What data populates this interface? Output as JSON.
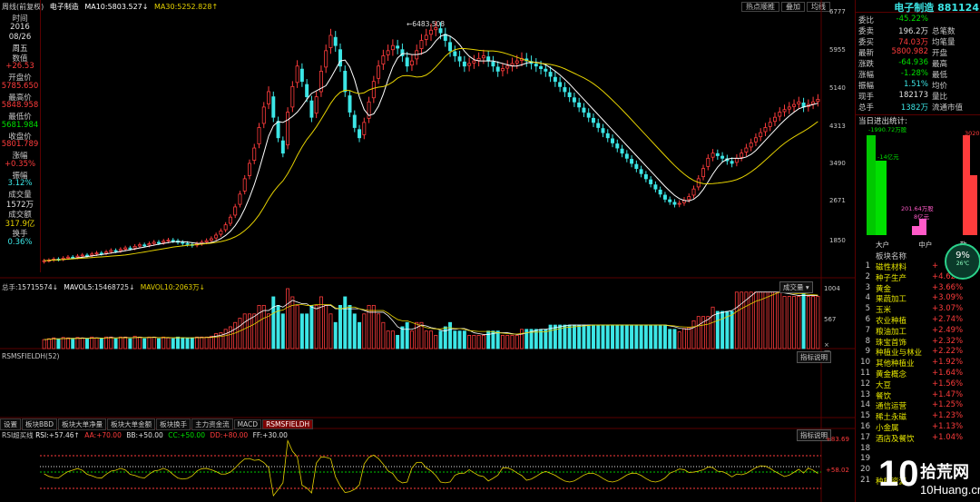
{
  "header": {
    "period": "周线(前复权)",
    "name": "电子制造",
    "ma10_label": "MA10:",
    "ma10_value": "5803.527↓",
    "ma30_label": "MA30:",
    "ma30_value": "5252.828↑",
    "top_buttons": [
      "热点顺推",
      "叠加",
      "均线"
    ]
  },
  "left_info": [
    {
      "label": "时间",
      "value": "2016",
      "color": "white"
    },
    {
      "label": "",
      "value": "08/26",
      "color": "white"
    },
    {
      "label": "",
      "value": "周五",
      "color": "white"
    },
    {
      "label": "数值",
      "value": "+26.53",
      "color": "red"
    },
    {
      "label": "开盘价",
      "value": "5785.650",
      "color": "red"
    },
    {
      "label": "最高价",
      "value": "5848.958",
      "color": "red"
    },
    {
      "label": "最低价",
      "value": "5681.984",
      "color": "green"
    },
    {
      "label": "收盘价",
      "value": "5801.789",
      "color": "red"
    },
    {
      "label": "涨幅",
      "value": "+0.35%",
      "color": "red"
    },
    {
      "label": "振幅",
      "value": "3.12%",
      "color": "cyan"
    },
    {
      "label": "成交量",
      "value": "1572万",
      "color": "white"
    },
    {
      "label": "成交额",
      "value": "317.9亿",
      "color": "yellow"
    },
    {
      "label": "换手",
      "value": "0.36%",
      "color": "cyan"
    }
  ],
  "price_axis": [
    "6777",
    "5955",
    "5140",
    "4313",
    "3490",
    "2671",
    "1850"
  ],
  "peak_label": "6483.508",
  "volume": {
    "label1": "总手",
    "v1": "15715574↓",
    "label2": "MAVOL5:",
    "v2": "15468725↓",
    "label3": "MAVOL10:",
    "v3": "2063万↓",
    "dropdown": "成交量",
    "axis": [
      "1004",
      "567",
      "×万"
    ]
  },
  "rsm": {
    "label": "RSMSFIELDH(52)",
    "button": "指标说明"
  },
  "tabs": [
    "设置",
    "板块BBD",
    "板块大单净量",
    "板块大单金额",
    "板块换手",
    "主力资金流",
    "MACD",
    "RSMSFIELDH"
  ],
  "active_tab": "RSMSFIELDH",
  "rsi": {
    "title": "RSI超买线",
    "rsi_label": "RSI:",
    "rsi_value": "+57.46↑",
    "aa": "AA:+70.00",
    "bb": "BB:+50.00",
    "cc": "CC:+50.00",
    "dd": "DD:+80.00",
    "ff": "FF:+30.00",
    "button": "指标说明",
    "axis_top": "+83.69",
    "axis_mid": "+58.02"
  },
  "right_panel": {
    "title": "电子制造 881124",
    "rows": [
      {
        "k": "委比",
        "v": "-45.22%",
        "vc": "green",
        "k2": ""
      },
      {
        "k": "委卖",
        "v": "196.2万",
        "vc": "white",
        "k2": "总笔数"
      },
      {
        "k": "委买",
        "v": "74.03万",
        "vc": "red",
        "k2": "均笔量"
      },
      {
        "k": "最新",
        "v": "5800.982",
        "vc": "red",
        "k2": "开盘"
      },
      {
        "k": "涨跌",
        "v": "-64.936",
        "vc": "green",
        "k2": "最高"
      },
      {
        "k": "涨幅",
        "v": "-1.28%",
        "vc": "green",
        "k2": "最低"
      },
      {
        "k": "振幅",
        "v": "1.51%",
        "vc": "cyan",
        "k2": "均价"
      },
      {
        "k": "现手",
        "v": "182173",
        "vc": "white",
        "k2": "量比"
      },
      {
        "k": "总手",
        "v": "1382万",
        "vc": "cyan",
        "k2": "流通市值"
      }
    ],
    "flow_title": "当日进出统计:",
    "flow_labels": [
      "-1990.72万股",
      "-14亿元",
      "201.64万股",
      "8亿元",
      "3020"
    ],
    "flow_cats": [
      "大户",
      "中户",
      "散"
    ],
    "board_header": "板块名称",
    "circle_pct": "9%",
    "circle_sub": "26℃"
  },
  "board_list": [
    {
      "n": "1",
      "name": "磁性材料",
      "pct": "+"
    },
    {
      "n": "2",
      "name": "种子生产",
      "pct": "+4.62%"
    },
    {
      "n": "3",
      "name": "黄金",
      "pct": "+3.66%"
    },
    {
      "n": "4",
      "name": "果蔬加工",
      "pct": "+3.09%"
    },
    {
      "n": "5",
      "name": "玉米",
      "pct": "+3.07%"
    },
    {
      "n": "6",
      "name": "农业种植",
      "pct": "+2.74%"
    },
    {
      "n": "7",
      "name": "粮油加工",
      "pct": "+2.49%"
    },
    {
      "n": "8",
      "name": "珠宝首饰",
      "pct": "+2.32%"
    },
    {
      "n": "9",
      "name": "种植业与林业",
      "pct": "+2.22%"
    },
    {
      "n": "10",
      "name": "其他种植业",
      "pct": "+1.92%"
    },
    {
      "n": "11",
      "name": "黄金概念",
      "pct": "+1.64%"
    },
    {
      "n": "12",
      "name": "大豆",
      "pct": "+1.56%"
    },
    {
      "n": "13",
      "name": "餐饮",
      "pct": "+1.47%"
    },
    {
      "n": "14",
      "name": "通信运营",
      "pct": "+1.25%"
    },
    {
      "n": "15",
      "name": "稀土永磁",
      "pct": "+1.23%"
    },
    {
      "n": "16",
      "name": "小金属",
      "pct": "+1.13%"
    },
    {
      "n": "17",
      "name": "酒店及餐饮",
      "pct": "+1.04%"
    },
    {
      "n": "18",
      "name": "",
      "pct": ""
    },
    {
      "n": "19",
      "name": "",
      "pct": ""
    },
    {
      "n": "20",
      "name": "",
      "pct": ""
    },
    {
      "n": "21",
      "name": "种植资源",
      "pct": ""
    }
  ],
  "watermark": {
    "num": "10",
    "cn": "拾荒网",
    "url": "10Huang.cn"
  },
  "colors": {
    "up": "#ff3c3c",
    "down": "#3ce6e6",
    "ma10": "#ffffff",
    "ma30": "#e6d200",
    "border": "#5a0000"
  },
  "chart_data": {
    "type": "candlestick",
    "ylim": [
      1850,
      6777
    ],
    "closes": [
      1900,
      1910,
      1930,
      1925,
      1950,
      1970,
      1965,
      1990,
      2010,
      2000,
      2030,
      2050,
      2040,
      2070,
      2100,
      2090,
      2120,
      2150,
      2140,
      2180,
      2210,
      2200,
      2230,
      2260,
      2250,
      2280,
      2300,
      2290,
      2260,
      2240,
      2220,
      2200,
      2230,
      2260,
      2290,
      2330,
      2400,
      2480,
      2600,
      2750,
      2950,
      3200,
      3500,
      3800,
      4100,
      4500,
      4900,
      5200,
      4700,
      4300,
      4000,
      4800,
      5300,
      5700,
      5400,
      5100,
      4700,
      5100,
      5600,
      6000,
      6300,
      6100,
      5700,
      5200,
      4800,
      4500,
      4300,
      4600,
      5000,
      5400,
      5700,
      5900,
      6000,
      6100,
      6050,
      5900,
      5700,
      5800,
      6000,
      6200,
      6300,
      6400,
      6450,
      6350,
      6200,
      6000,
      5900,
      5800,
      5700,
      5750,
      5800,
      5850,
      5900,
      5800,
      5700,
      5600,
      5650,
      5700,
      5750,
      5800,
      5850,
      5800,
      5750,
      5700,
      5650,
      5600,
      5500,
      5400,
      5300,
      5200,
      5100,
      5000,
      4900,
      4800,
      4700,
      4600,
      4500,
      4400,
      4300,
      4200,
      4100,
      4000,
      3900,
      3800,
      3700,
      3600,
      3500,
      3400,
      3300,
      3200,
      3100,
      3050,
      3000,
      3020,
      3080,
      3150,
      3300,
      3500,
      3700,
      3900,
      4000,
      3950,
      3900,
      3850,
      3800,
      3900,
      4000,
      4100,
      4200,
      4300,
      4400,
      4500,
      4600,
      4700,
      4800,
      4850,
      4900,
      4950,
      5000,
      4900,
      4950,
      5000,
      5050
    ]
  }
}
